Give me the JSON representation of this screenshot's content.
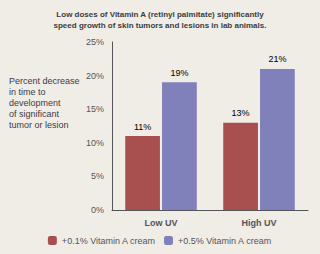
{
  "chart_data": {
    "type": "bar",
    "title": "Low doses of Vitamin A (retinyl palmitate) significantly\nspeed growth of skin tumors and lesions in lab animals.",
    "ylabel": "Percent decrease\nin time to\ndevelopment\nof significant\ntumor or lesion",
    "categories": [
      "Low UV",
      "High UV"
    ],
    "series": [
      {
        "name": "+0.1% Vitamin A cream",
        "color": "#a85050",
        "values": [
          11,
          13
        ],
        "value_labels": [
          "11%",
          "13%"
        ]
      },
      {
        "name": "+0.5% Vitamin A cream",
        "color": "#8080bb",
        "values": [
          19,
          21
        ],
        "value_labels": [
          "19%",
          "21%"
        ]
      }
    ],
    "ylim": [
      0,
      25
    ],
    "yticks": [
      {
        "value": 0,
        "label": "0%"
      },
      {
        "value": 5,
        "label": "5%"
      },
      {
        "value": 10,
        "label": "10%"
      },
      {
        "value": 15,
        "label": "15%"
      },
      {
        "value": 20,
        "label": "20%"
      },
      {
        "value": 25,
        "label": "25%"
      }
    ],
    "data_labels": true,
    "grid": false,
    "legend": "bottom"
  }
}
